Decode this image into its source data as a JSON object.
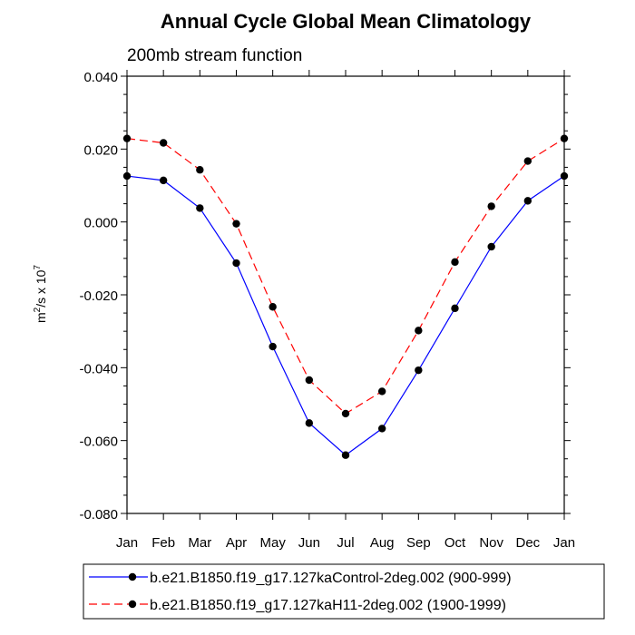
{
  "chart_data": {
    "type": "line",
    "title": "Annual Cycle Global Mean Climatology",
    "subtitle": "200mb stream function",
    "ylabel": {
      "base": "m",
      "sup1": "2",
      "mid": "/s x 10",
      "sup2": "7"
    },
    "xlabel": "",
    "categories": [
      "Jan",
      "Feb",
      "Mar",
      "Apr",
      "May",
      "Jun",
      "Jul",
      "Aug",
      "Sep",
      "Oct",
      "Nov",
      "Dec",
      "Jan"
    ],
    "ylim": [
      -0.08,
      0.04
    ],
    "yticks": [
      -0.08,
      -0.06,
      -0.04,
      -0.02,
      0.0,
      0.02,
      0.04
    ],
    "ytick_labels": [
      "-0.080",
      "-0.060",
      "-0.040",
      "-0.020",
      "0.000",
      "0.020",
      "0.040"
    ],
    "series": [
      {
        "name": "b.e21.B1850.f19_g17.127kaControl-2deg.002 (900-999)",
        "color": "#0000ff",
        "dash": "solid",
        "values": [
          0.0126,
          0.0114,
          0.0038,
          -0.0113,
          -0.0342,
          -0.0552,
          -0.064,
          -0.0567,
          -0.0407,
          -0.0237,
          -0.0068,
          0.0058,
          0.0126
        ]
      },
      {
        "name": "b.e21.B1850.f19_g17.127kaH11-2deg.002 (1900-1999)",
        "color": "#ff0000",
        "dash": "dashed",
        "values": [
          0.0229,
          0.0217,
          0.0143,
          -0.0005,
          -0.0233,
          -0.0434,
          -0.0526,
          -0.0465,
          -0.0298,
          -0.011,
          0.0043,
          0.0167,
          0.0229
        ]
      }
    ],
    "legend_position": "bottom"
  }
}
